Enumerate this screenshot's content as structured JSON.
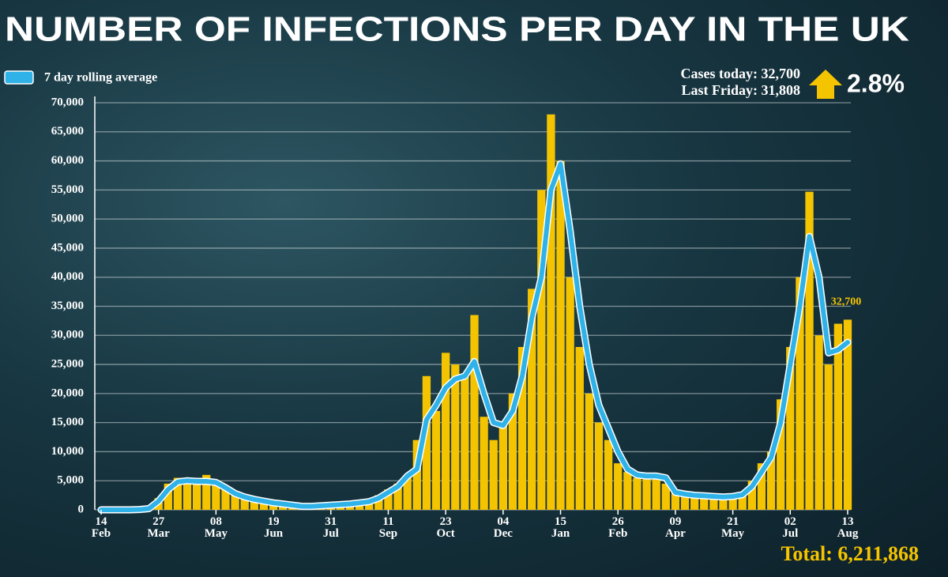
{
  "chart_data": {
    "type": "combo",
    "title": "NUMBER OF INFECTIONS PER DAY IN THE UK",
    "annotations": [
      "Cases today: 32,700",
      "Last Friday: 31,808",
      "2.8%",
      "Total: 6,211,868"
    ],
    "categories": [
      "14\nFeb",
      null,
      null,
      null,
      null,
      null,
      "27\nMar",
      null,
      null,
      null,
      null,
      null,
      "08\nMay",
      null,
      null,
      null,
      null,
      null,
      "19\nJun",
      null,
      null,
      null,
      null,
      null,
      "31\nJul",
      null,
      null,
      null,
      null,
      null,
      "11\nSep",
      null,
      null,
      null,
      null,
      null,
      "23\nOct",
      null,
      null,
      null,
      null,
      null,
      "04\nDec",
      null,
      null,
      null,
      null,
      null,
      "15\nJan",
      null,
      null,
      null,
      null,
      null,
      "26\nFeb",
      null,
      null,
      null,
      null,
      null,
      "09\nApr",
      null,
      null,
      null,
      null,
      null,
      "21\nMay",
      null,
      null,
      null,
      null,
      null,
      "02\nJul",
      null,
      null,
      null,
      null,
      null,
      "13\nAug"
    ],
    "series": [
      {
        "type": "bar",
        "color": "#f5c400",
        "values": [
          0,
          0,
          0,
          0,
          100,
          300,
          2000,
          4500,
          5500,
          5000,
          5200,
          6000,
          4800,
          3500,
          2500,
          2000,
          1600,
          1300,
          1000,
          900,
          700,
          600,
          700,
          800,
          900,
          1000,
          1100,
          1300,
          1600,
          2500,
          3500,
          4500,
          6000,
          12000,
          23000,
          17000,
          27000,
          25000,
          23000,
          33500,
          16000,
          12000,
          15000,
          20000,
          28000,
          38000,
          55000,
          68000,
          60000,
          40000,
          28000,
          20000,
          15000,
          12000,
          8000,
          6500,
          5500,
          6000,
          5500,
          4500,
          2800,
          2500,
          2300,
          2200,
          2200,
          2100,
          2500,
          3000,
          5000,
          8000,
          10000,
          19000,
          28000,
          40000,
          54700,
          30000,
          25000,
          32000,
          32700
        ],
        "value_labels": [
          null,
          null,
          null,
          null,
          null,
          null,
          null,
          null,
          null,
          null,
          null,
          null,
          null,
          null,
          null,
          null,
          null,
          null,
          null,
          null,
          null,
          null,
          null,
          null,
          null,
          null,
          null,
          null,
          null,
          null,
          null,
          null,
          null,
          null,
          null,
          null,
          null,
          null,
          null,
          null,
          null,
          null,
          null,
          null,
          null,
          null,
          null,
          null,
          null,
          null,
          null,
          null,
          null,
          null,
          null,
          null,
          null,
          null,
          null,
          null,
          null,
          null,
          null,
          null,
          null,
          null,
          null,
          null,
          null,
          null,
          null,
          null,
          null,
          null,
          null,
          null,
          null,
          null,
          "32,700"
        ]
      },
      {
        "type": "line",
        "name": "7 day rolling average",
        "color": "#2fb2e8",
        "values": [
          0,
          0,
          0,
          0,
          50,
          200,
          1500,
          3500,
          4800,
          5000,
          4900,
          4900,
          4700,
          3800,
          2800,
          2200,
          1800,
          1500,
          1200,
          1000,
          800,
          600,
          600,
          700,
          800,
          900,
          1000,
          1200,
          1400,
          2000,
          3000,
          4000,
          5800,
          7000,
          15500,
          18000,
          21000,
          22500,
          23000,
          25500,
          20000,
          15000,
          14500,
          17000,
          23000,
          33000,
          40000,
          55000,
          59500,
          48000,
          35000,
          25000,
          18000,
          14000,
          10000,
          7000,
          6000,
          5800,
          5800,
          5500,
          3000,
          2700,
          2500,
          2400,
          2300,
          2200,
          2300,
          2600,
          4000,
          6500,
          9000,
          15000,
          25000,
          35000,
          47000,
          40000,
          27000,
          27500,
          28800
        ]
      }
    ],
    "ylim": [
      0,
      70000
    ],
    "yticks": [
      0,
      {
        "value": 5000,
        "label": "5,000"
      },
      {
        "value": 10000,
        "label": "10,000"
      },
      {
        "value": 15000,
        "label": "15,000"
      },
      {
        "value": 20000,
        "label": "20,000"
      },
      {
        "value": 25000,
        "label": "25,000"
      },
      {
        "value": 30000,
        "label": "30,000"
      },
      {
        "value": 35000,
        "label": "35,000"
      },
      {
        "value": 40000,
        "label": "40,000"
      },
      {
        "value": 45000,
        "label": "45,000"
      },
      {
        "value": 50000,
        "label": "50,000"
      },
      {
        "value": 55000,
        "label": "55,000"
      },
      {
        "value": 60000,
        "label": "60,000"
      },
      {
        "value": 65000,
        "label": "65,000"
      },
      {
        "value": 70000,
        "label": "70,000"
      }
    ],
    "grid": true
  }
}
